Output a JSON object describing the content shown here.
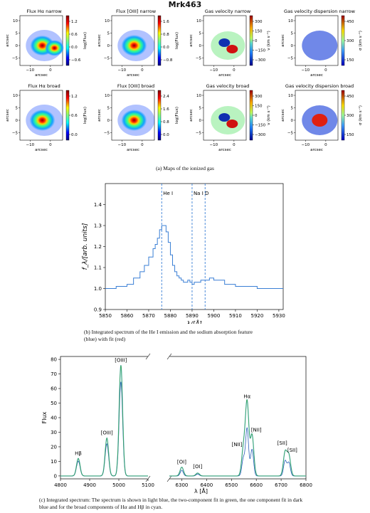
{
  "figure_title": "Mrk463",
  "panel_a": {
    "caption": "(a) Maps of the ionized gas",
    "axis_label_x": "arcsec",
    "axis_label_y": "arcsec",
    "maps": [
      {
        "title": "Flux Hα narrow",
        "cbar_label": "log(Flux)",
        "cbar_ticks": [
          "1.2",
          "0.6",
          "0.0",
          "−0.6"
        ],
        "cmap": "jet",
        "xticks": [
          "−10",
          "0"
        ],
        "yticks": [
          "10",
          "5",
          "0",
          "−5"
        ],
        "blobs": [
          [
            -4,
            0,
            0.95
          ],
          [
            2,
            -1,
            0.75
          ]
        ]
      },
      {
        "title": "Flux [OIII] narrow",
        "cbar_label": "log(Flux)",
        "cbar_ticks": [
          "1.6",
          "0.8",
          "0.0",
          "−0.8"
        ],
        "cmap": "jet",
        "xticks": [
          "−10",
          "0"
        ],
        "yticks": [
          "10",
          "5",
          "0",
          "−5"
        ],
        "blobs": [
          [
            -4,
            0,
            1.0
          ]
        ]
      },
      {
        "title": "Gas velocity narrow",
        "cbar_label": "v (km s⁻¹)",
        "cbar_ticks": [
          "300",
          "150",
          "0",
          "−150",
          "−300"
        ],
        "cmap": "vel",
        "xticks": [
          "−10",
          "0"
        ],
        "yticks": [
          "10",
          "5",
          "0",
          "−5"
        ],
        "blobs": []
      },
      {
        "title": "Gas velocity dispersion narrow",
        "cbar_label": "σ (km s⁻¹)",
        "cbar_ticks": [
          "450",
          "300",
          "150"
        ],
        "cmap": "disp",
        "xticks": [
          "−10",
          "0"
        ],
        "yticks": [
          "10",
          "5",
          "0",
          "−5"
        ],
        "blobs": []
      },
      {
        "title": "Flux Hα broad",
        "cbar_label": "log(Flux)",
        "cbar_ticks": [
          "1.2",
          "0.6",
          "0.0"
        ],
        "cmap": "jet",
        "xticks": [
          "−10",
          "0"
        ],
        "yticks": [
          "10",
          "5",
          "0",
          "−5"
        ],
        "blobs": [
          [
            -4,
            0,
            1.0
          ]
        ]
      },
      {
        "title": "Flux [OIII] broad",
        "cbar_label": "log(Flux)",
        "cbar_ticks": [
          "2.4",
          "1.6",
          "0.8",
          "0.0"
        ],
        "cmap": "jet",
        "xticks": [
          "−10",
          "0"
        ],
        "yticks": [
          "10",
          "5",
          "0",
          "−5"
        ],
        "blobs": [
          [
            -4,
            0,
            1.0
          ]
        ]
      },
      {
        "title": "Gas velocity broad",
        "cbar_label": "v (km s⁻¹)",
        "cbar_ticks": [
          "300",
          "150",
          "0",
          "−150",
          "−300"
        ],
        "cmap": "vel",
        "xticks": [
          "−10",
          "0"
        ],
        "yticks": [
          "10",
          "5",
          "0",
          "−5"
        ],
        "blobs": []
      },
      {
        "title": "Gas velocity dispersion broad",
        "cbar_label": "σ (km s⁻¹)",
        "cbar_ticks": [
          "450",
          "300",
          "150"
        ],
        "cmap": "disp",
        "xticks": [
          "−10",
          "0"
        ],
        "yticks": [
          "10",
          "5",
          "0",
          "−5"
        ],
        "blobs": []
      }
    ]
  },
  "panel_b": {
    "caption_line1": "(b) Integrated spectrum of the He I emission and the sodium absorption feature",
    "caption_line2": "(blue) with fit (red)",
    "chart_data": {
      "type": "line",
      "xlabel": "λ/[Å]",
      "ylabel": "f_λ/[arb. units]",
      "xlim": [
        5850,
        5932
      ],
      "ylim": [
        0.9,
        1.5
      ],
      "xticks": [
        5850,
        5860,
        5870,
        5880,
        5890,
        5900,
        5910,
        5920,
        5930
      ],
      "yticks": [
        1.4,
        1.3,
        1.2,
        1.1,
        1.0,
        0.9
      ],
      "line_color": "#3a7fd5",
      "markers": [
        {
          "label": "He I",
          "x": 5876
        },
        {
          "label": "Na I D",
          "x": 5890
        },
        {
          "label": "",
          "x": 5896
        }
      ],
      "series": [
        {
          "x": [
            5850,
            5855,
            5860,
            5863,
            5866,
            5868,
            5870,
            5872,
            5873,
            5874,
            5875,
            5876,
            5877,
            5878,
            5879,
            5880,
            5881,
            5882,
            5883,
            5884,
            5885,
            5886,
            5887,
            5888,
            5889,
            5890,
            5891,
            5892,
            5894,
            5896,
            5898,
            5900,
            5905,
            5910,
            5915,
            5920,
            5925,
            5930,
            5932
          ],
          "values": [
            1.0,
            1.01,
            1.02,
            1.05,
            1.08,
            1.11,
            1.15,
            1.19,
            1.21,
            1.24,
            1.28,
            1.3,
            1.3,
            1.27,
            1.22,
            1.16,
            1.11,
            1.08,
            1.06,
            1.05,
            1.04,
            1.03,
            1.03,
            1.04,
            1.03,
            1.02,
            1.03,
            1.03,
            1.04,
            1.04,
            1.05,
            1.04,
            1.02,
            1.01,
            1.01,
            1.0,
            1.0,
            1.0,
            1.0
          ]
        }
      ]
    }
  },
  "panel_c": {
    "caption_line1": "(c) Integrated spectrum: The spectrum is shown in light blue, the two-component fit in green, the one component fit in dark",
    "caption_line2": "blue and for the broad components of Hα and Hβ in cyan.",
    "chart_data": {
      "type": "line",
      "xlabel": "λ [Å]",
      "ylabel": "Flux",
      "ylim": [
        -2,
        82
      ],
      "yticks": [
        80,
        70,
        60,
        50,
        40,
        30,
        20,
        10,
        0
      ],
      "left_xlim": [
        4800,
        5100
      ],
      "left_xticks": [
        4800,
        4900,
        5000,
        5100
      ],
      "right_xlim": [
        6250,
        6800
      ],
      "right_xticks": [
        6300,
        6400,
        6500,
        6600,
        6700,
        6800
      ],
      "colors": {
        "spectrum": "#8fc8ff",
        "two_component": "#3aa757",
        "one_component": "#2a5fb8",
        "broad": "#22c0d0"
      },
      "lines": [
        {
          "label": "Hβ",
          "x": 4861,
          "peak": 12
        },
        {
          "label": "[OIII]",
          "x": 4959,
          "peak": 26
        },
        {
          "label": "[OIII]",
          "x": 5007,
          "peak": 76
        },
        {
          "label": "[OI]",
          "x": 6300,
          "peak": 6
        },
        {
          "label": "[OI]",
          "x": 6364,
          "peak": 2
        },
        {
          "label": "[NII]",
          "x": 6548,
          "peak": 18
        },
        {
          "label": "Hα",
          "x": 6563,
          "peak": 50
        },
        {
          "label": "[NII]",
          "x": 6583,
          "peak": 28
        },
        {
          "label": "[SII]",
          "x": 6716,
          "peak": 16
        },
        {
          "label": "[SII]",
          "x": 6731,
          "peak": 14
        }
      ]
    }
  }
}
